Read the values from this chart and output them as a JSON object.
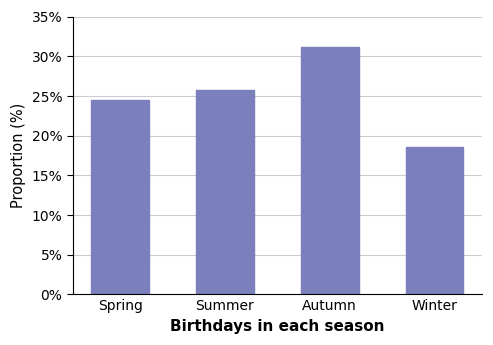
{
  "categories": [
    "Spring",
    "Summer",
    "Autumn",
    "Winter"
  ],
  "values": [
    24.5,
    25.7,
    31.2,
    18.6
  ],
  "bar_color": "#7b7fbc",
  "bar_edgecolor": "#7b7fbc",
  "title": "",
  "xlabel": "Birthdays in each season",
  "ylabel": "Proportion (%)",
  "ylim": [
    0,
    0.35
  ],
  "yticks": [
    0.0,
    0.05,
    0.1,
    0.15,
    0.2,
    0.25,
    0.3,
    0.35
  ],
  "xlabel_fontsize": 11,
  "ylabel_fontsize": 10.5,
  "tick_fontsize": 10,
  "xlabel_fontweight": "bold"
}
